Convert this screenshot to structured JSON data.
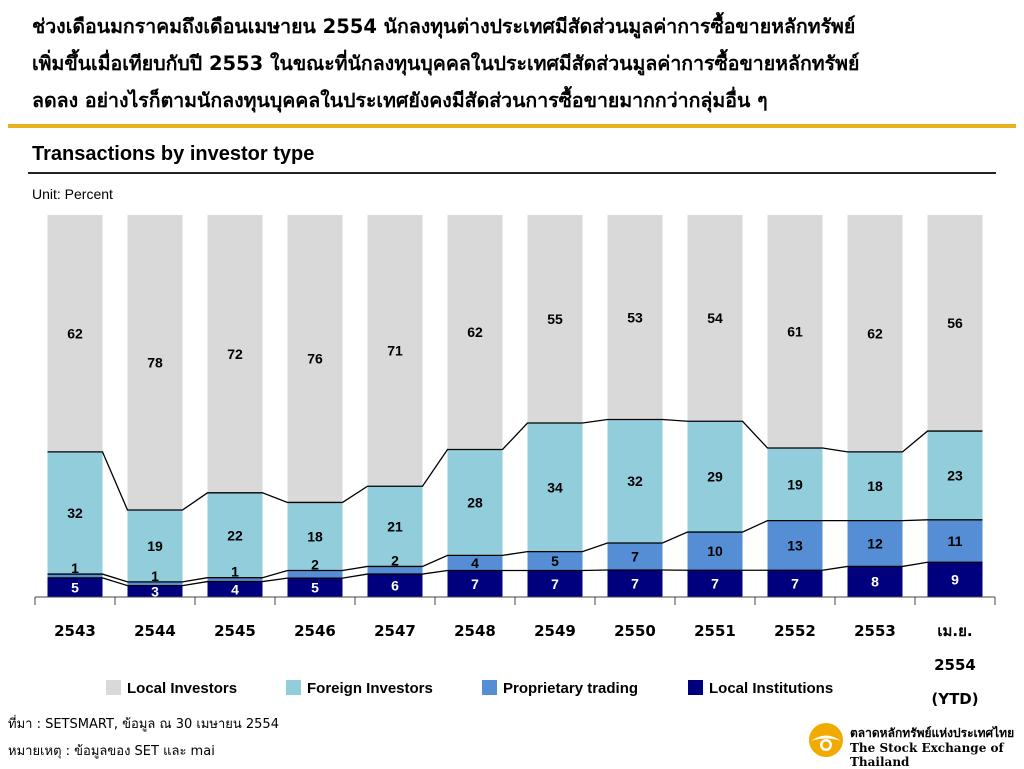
{
  "headline": [
    "ช่วงเดือนมกราคมถึงเดือนเมษายน 2554 นักลงทุนต่างประเทศมีสัดส่วนมูลค่าการซื้อขายหลักทรัพย์",
    "เพิ่มขึ้นเมื่อเทียบกับปี 2553 ในขณะที่นักลงทุนบุคคลในประเทศมีสัดส่วนมูลค่าการซื้อขายหลักทรัพย์",
    "ลดลง อย่างไรก็ตามนักลงทุนบุคคลในประเทศยังคงมีสัดส่วนการซื้อขายมากกว่ากลุ่มอื่น ๆ"
  ],
  "unit_label": "Unit: Percent",
  "source": "ที่มา : SETSMART, ข้อมูล ณ 30 เมษายน 2554",
  "note": "หมายเหตุ : ข้อมูลของ SET และ mai",
  "logo": {
    "thai": "ตลาดหลักทรัพย์แห่งประเทศไทย",
    "english": "The Stock Exchange of Thailand"
  },
  "colors": {
    "local_investors": "#d9d9d9",
    "foreign_investors": "#92cddc",
    "proprietary_trading": "#558ed5",
    "local_institutions": "#00007f",
    "accent_rule": "#e7b21c",
    "logo": "#f2a900"
  },
  "chart_data": {
    "type": "bar",
    "stacked": true,
    "title": "Transactions by investor type",
    "ylabel": "Unit: Percent",
    "categories": [
      "2543",
      "2544",
      "2545",
      "2546",
      "2547",
      "2548",
      "2549",
      "2550",
      "2551",
      "2552",
      "2553",
      "เม.ย. 2554 (YTD)"
    ],
    "category_lines": [
      [
        "2543"
      ],
      [
        "2544"
      ],
      [
        "2545"
      ],
      [
        "2546"
      ],
      [
        "2547"
      ],
      [
        "2548"
      ],
      [
        "2549"
      ],
      [
        "2550"
      ],
      [
        "2551"
      ],
      [
        "2552"
      ],
      [
        "2553"
      ],
      [
        "เม.ย.",
        "2554",
        "(YTD)"
      ]
    ],
    "series": [
      {
        "name": "Local Institutions",
        "color": "#00007f",
        "values": [
          5,
          3,
          4,
          5,
          6,
          7,
          7,
          7,
          7,
          7,
          8,
          9
        ]
      },
      {
        "name": "Proprietary trading",
        "color": "#558ed5",
        "values": [
          1,
          1,
          1,
          2,
          2,
          4,
          5,
          7,
          10,
          13,
          12,
          11
        ]
      },
      {
        "name": "Foreign Investors",
        "color": "#92cddc",
        "values": [
          32,
          19,
          22,
          18,
          21,
          28,
          34,
          32,
          29,
          19,
          18,
          23
        ]
      },
      {
        "name": "Local Investors",
        "color": "#d9d9d9",
        "values": [
          62,
          78,
          72,
          76,
          71,
          62,
          55,
          53,
          54,
          61,
          62,
          56
        ]
      }
    ],
    "legend_order": [
      "Local Investors",
      "Foreign Investors",
      "Proprietary trading",
      "Local Institutions"
    ],
    "legend_position": "bottom",
    "ylim": [
      0,
      100
    ],
    "grid": false,
    "connector_lines": true
  }
}
